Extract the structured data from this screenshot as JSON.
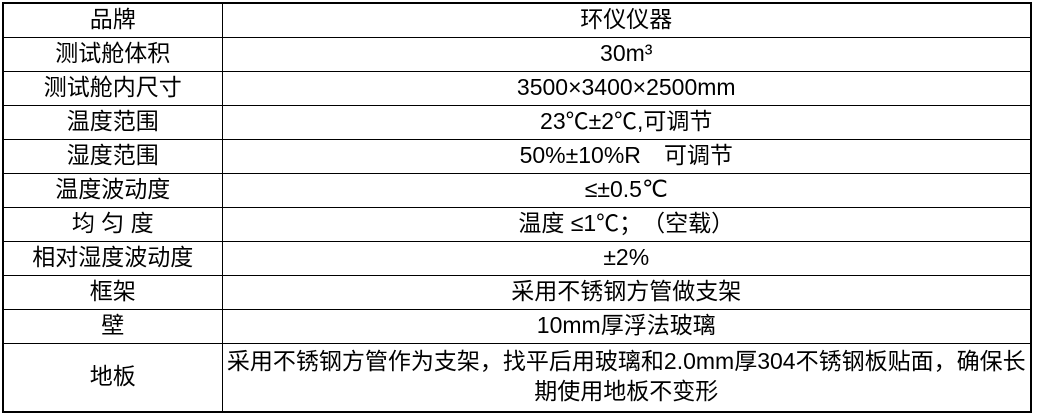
{
  "table": {
    "name": "product-specification-table",
    "columns": [
      "label",
      "value"
    ],
    "rows": [
      {
        "label": "品牌",
        "value": "环仪仪器"
      },
      {
        "label": "测试舱体积",
        "value": "30m³"
      },
      {
        "label": "测试舱内尺寸",
        "value": "3500×3400×2500mm"
      },
      {
        "label": "温度范围",
        "value": "23℃±2℃,可调节"
      },
      {
        "label": "湿度范围",
        "value": "50%±10%R　可调节"
      },
      {
        "label": "温度波动度",
        "value": "≤±0.5℃"
      },
      {
        "label": "均 匀 度",
        "value": "温度 ≤1℃；　（空载）"
      },
      {
        "label": "相对湿度波动度",
        "value": "±2%"
      },
      {
        "label": "框架",
        "value": "采用不锈钢方管做支架"
      },
      {
        "label": "壁",
        "value": "10mm厚浮法玻璃"
      },
      {
        "label": "地板",
        "value": "采用不锈钢方管作为支架，找平后用玻璃和2.0mm厚304不锈钢板贴面，确保长期使用地板不变形"
      }
    ],
    "tall_row_index": 10,
    "colors": {
      "border": "#000000",
      "text": "#000000",
      "background": "#ffffff"
    }
  }
}
